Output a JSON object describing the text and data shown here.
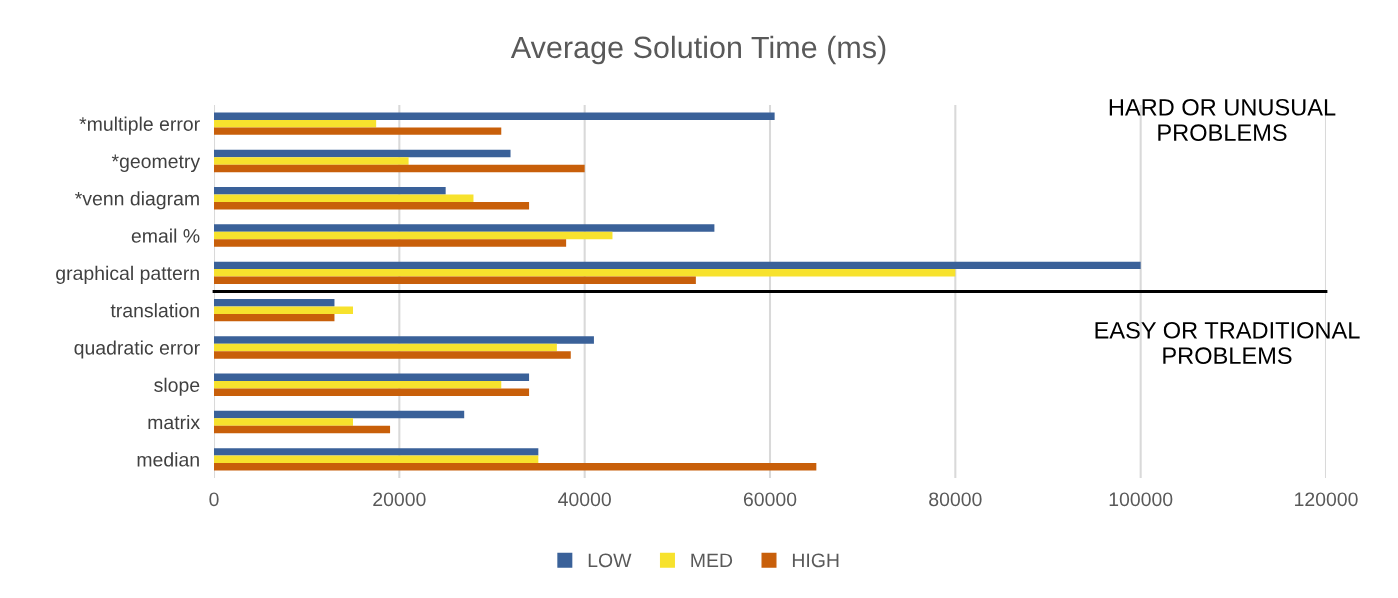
{
  "chart_data": [
    {
      "type": "bar",
      "orientation": "horizontal",
      "title": "Average Solution Time (ms)",
      "categories": [
        "*multiple error",
        "*geometry",
        "*venn diagram",
        "email %",
        "graphical pattern"
      ],
      "series": [
        {
          "name": "LOW",
          "color": "#3a6199",
          "values": [
            60500,
            32000,
            25000,
            54000,
            100000
          ]
        },
        {
          "name": "MED",
          "color": "#f7e22d",
          "values": [
            17500,
            21000,
            28000,
            43000,
            80000
          ]
        },
        {
          "name": "HIGH",
          "color": "#c85f0a",
          "values": [
            31000,
            40000,
            34000,
            38000,
            52000
          ]
        }
      ],
      "xlim": [
        0,
        120000
      ],
      "tick_labels": "y",
      "grid": "x",
      "legend": "bottom",
      "annotations": [
        "HARD OR UNUSUAL\nPROBLEMS"
      ]
    },
    {
      "type": "bar",
      "orientation": "horizontal",
      "categories": [
        "translation",
        "quadratic error",
        "slope",
        "matrix",
        "median"
      ],
      "series": [
        {
          "color": "#3a6199",
          "values": [
            13000,
            41000,
            34000,
            27000,
            35000
          ]
        },
        {
          "color": "#f7e22d",
          "values": [
            15000,
            37000,
            31000,
            15000,
            35000
          ]
        },
        {
          "color": "#c85f0a",
          "values": [
            13000,
            38500,
            34000,
            19000,
            65000
          ]
        }
      ],
      "xlim": [
        0,
        120000
      ],
      "xticks": [
        0,
        20000,
        40000,
        60000,
        80000,
        100000,
        120000
      ],
      "grid": "x",
      "annotations": [
        "EASY OR TRADITIONAL\nPROBLEMS"
      ]
    }
  ]
}
